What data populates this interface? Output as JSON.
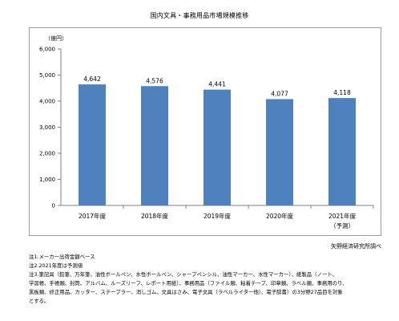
{
  "chart_data": {
    "type": "bar",
    "title": "国内文具・事務用品市場規模推移",
    "ylabel": "（億円）",
    "xlabel": "",
    "categories": [
      "2017年度",
      "2018年度",
      "2019年度",
      "2020年度",
      "2021年度"
    ],
    "category_sublabels": [
      "",
      "",
      "",
      "",
      "（予測）"
    ],
    "values": [
      4642,
      4576,
      4441,
      4077,
      4118
    ],
    "value_labels": [
      "4,642",
      "4,576",
      "4,441",
      "4,077",
      "4,118"
    ],
    "ylim": [
      0,
      6000
    ],
    "yticks": [
      0,
      1000,
      2000,
      3000,
      4000,
      5000,
      6000
    ],
    "ytick_labels": [
      "0",
      "1,000",
      "2,000",
      "3,000",
      "4,000",
      "5,000",
      "6,000"
    ],
    "grid": false,
    "legend": "none",
    "bar_color": "#4f81bd"
  },
  "source": "矢野経済研究所調べ",
  "notes": [
    "注1.メーカー出荷金額ベース",
    "注2.2021年度は予測値",
    "注3.筆記具（鉛筆、万年筆、油性ボールペン、水性ボールペン、シャープペンシル、油性マーカー、水性マーカー）、紙製品（ノート、",
    "学習帳、手帳類、封筒、アルバム、ルーズリーフ、レポート用紙）、事務用品（ファイル類、粘着テープ、印章類、ラベル類、事務用のり、",
    "黒板類、修正用品、カッター、ステープラー、消しゴム、文具はさみ、電子文具（ラベルライター他）、電子辞書）の3分野27品目を対象",
    "とする。"
  ]
}
